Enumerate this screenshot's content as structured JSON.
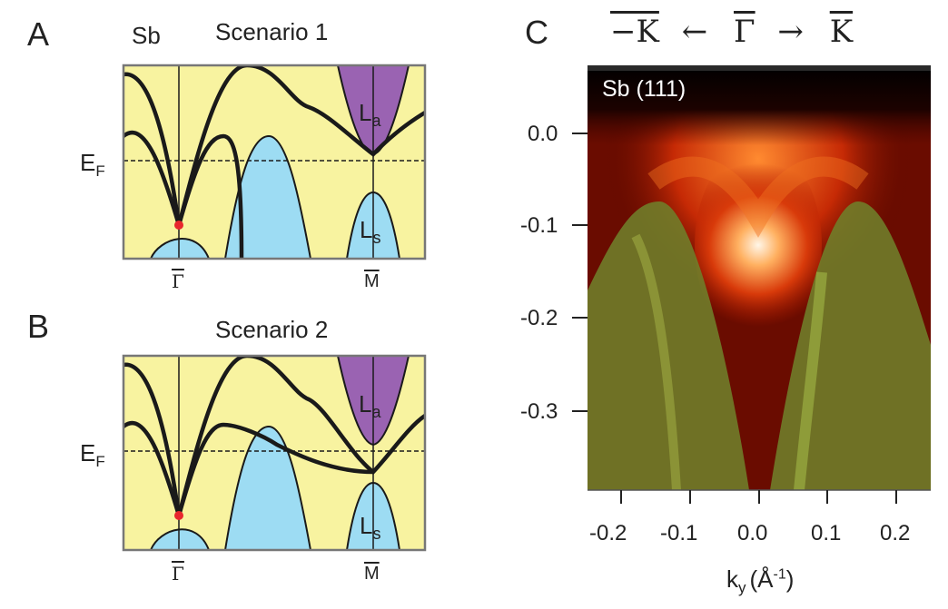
{
  "panel_a": {
    "letter": "A",
    "element": "Sb",
    "title": "Scenario 1",
    "ef_label": "E",
    "ef_sub": "F",
    "la_main": "L",
    "la_sub": "a",
    "ls_main": "L",
    "ls_sub": "s",
    "gamma_label": "Γ",
    "m_label": "M"
  },
  "panel_b": {
    "letter": "B",
    "title": "Scenario 2",
    "ef_label": "E",
    "ef_sub": "F",
    "la_main": "L",
    "la_sub": "a",
    "ls_main": "L",
    "ls_sub": "s",
    "gamma_label": "Γ",
    "m_label": "M"
  },
  "panel_c": {
    "letter": "C",
    "direction": {
      "left": "−K",
      "arrow_left": "←",
      "center": "Γ",
      "arrow_right": "→",
      "right": "K"
    },
    "sample_label": "Sb (111)",
    "y_ticks": [
      "0.0",
      "-0.1",
      "-0.2",
      "-0.3"
    ],
    "x_ticks": [
      "-0.2",
      "-0.1",
      "0.0",
      "0.1",
      "0.2"
    ],
    "x_label_main": "k",
    "x_label_sub": "y",
    "x_label_unit": "(Å",
    "x_label_exp": "-1",
    "x_label_close": ")"
  },
  "colors": {
    "panel_bg": "#f8f3a0",
    "bulk_blue": "#9ddcf3",
    "la_purple": "#9a63b2",
    "surface_band": "#1a1a1a",
    "dirac_point": "#e8262d"
  }
}
